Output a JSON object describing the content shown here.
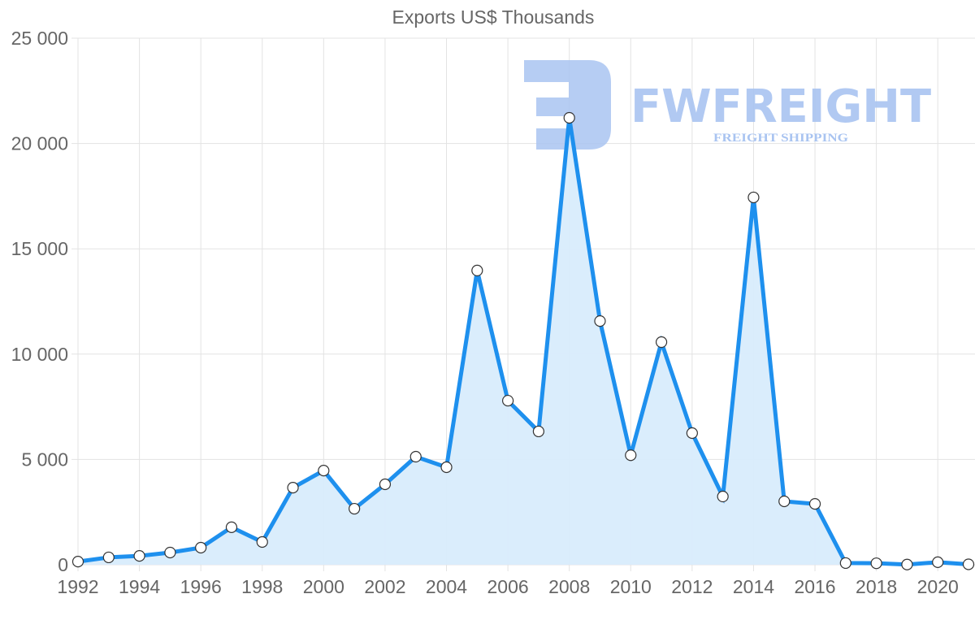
{
  "chart_data": {
    "type": "line",
    "title": "Exports US$ Thousands",
    "xlabel": "",
    "ylabel": "",
    "x": [
      1992,
      1993,
      1994,
      1995,
      1996,
      1997,
      1998,
      1999,
      2000,
      2001,
      2002,
      2003,
      2004,
      2005,
      2006,
      2007,
      2008,
      2009,
      2010,
      2011,
      2012,
      2013,
      2014,
      2015,
      2016,
      2017,
      2018,
      2019,
      2020,
      2021
    ],
    "series": [
      {
        "name": "Exports US$ Thousands",
        "values": [
          150,
          350,
          420,
          580,
          810,
          1780,
          1080,
          3660,
          4470,
          2660,
          3820,
          5130,
          4630,
          13970,
          7790,
          6330,
          21220,
          11570,
          5200,
          10570,
          6250,
          3240,
          17440,
          3010,
          2890,
          80,
          70,
          10,
          120,
          20
        ],
        "color": "#1e90ee",
        "fill": "#d8ecfc"
      }
    ],
    "ylim": [
      0,
      25000
    ],
    "yticks": [
      "0",
      "5 000",
      "10 000",
      "15 000",
      "20 000",
      "25 000"
    ],
    "xtick_labels": [
      "1992",
      "1994",
      "1996",
      "1998",
      "2000",
      "2002",
      "2004",
      "2006",
      "2008",
      "2010",
      "2012",
      "2014",
      "2016",
      "2018",
      "2020"
    ],
    "grid": true,
    "legend": null
  },
  "watermark": {
    "brand": "FWFREIGHT",
    "tagline": "FREIGHT SHIPPING",
    "color": "#a9c4f1"
  }
}
